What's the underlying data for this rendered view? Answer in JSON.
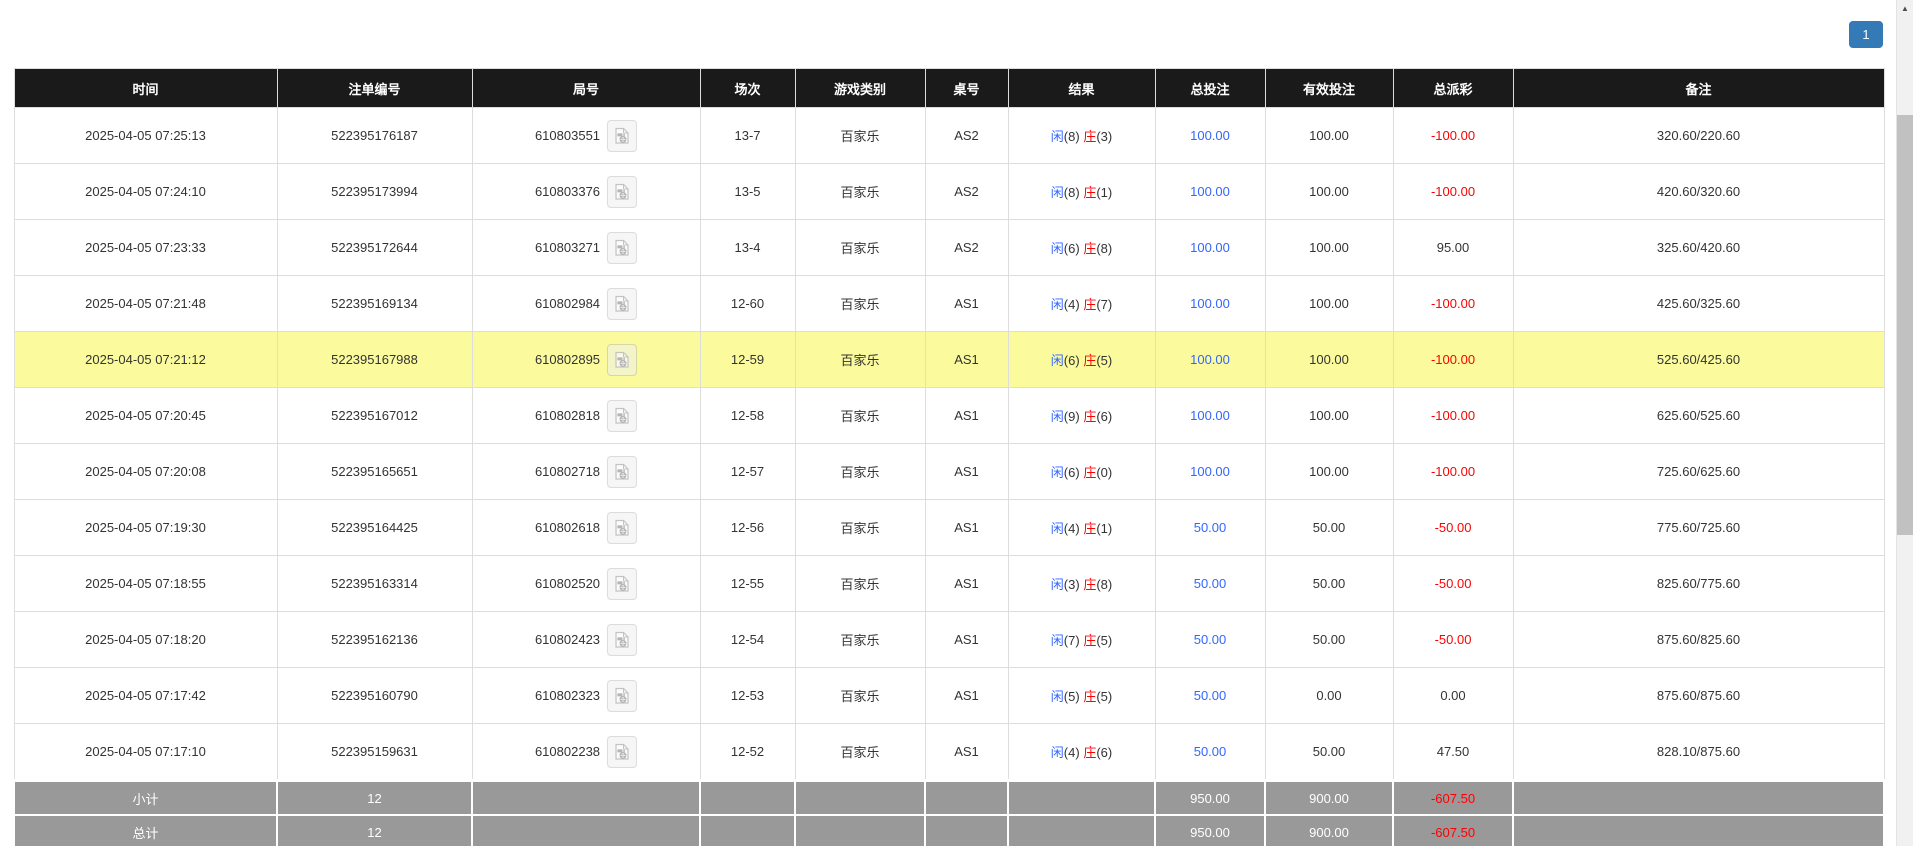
{
  "pagination": {
    "current_page": "1"
  },
  "icons": {
    "video_replay": "video-replay-icon",
    "scrollbar_up_arrow": "▲"
  },
  "colors": {
    "header_bg": "#1a1a1a",
    "link_blue": "#3366ff",
    "loss_red": "#ff0000",
    "highlight_yellow": "#fbfb9e",
    "summary_gray": "#999999",
    "pagination_blue": "#337ab7"
  },
  "table": {
    "columns": [
      "时间",
      "注单编号",
      "局号",
      "场次",
      "游戏类别",
      "桌号",
      "结果",
      "总投注",
      "有效投注",
      "总派彩",
      "备注"
    ],
    "rows": [
      {
        "time": "2025-04-05 07:25:13",
        "bet_id": "522395176187",
        "round": "610803551",
        "session": "13-7",
        "game": "百家乐",
        "table_no": "AS2",
        "result": {
          "player": "闲",
          "player_pts": "(8)",
          "banker": "庄",
          "banker_pts": "(3)"
        },
        "total_bet": "100.00",
        "valid_bet": "100.00",
        "payout": "-100.00",
        "remark": "320.60/220.60",
        "highlighted": false
      },
      {
        "time": "2025-04-05 07:24:10",
        "bet_id": "522395173994",
        "round": "610803376",
        "session": "13-5",
        "game": "百家乐",
        "table_no": "AS2",
        "result": {
          "player": "闲",
          "player_pts": "(8)",
          "banker": "庄",
          "banker_pts": "(1)"
        },
        "total_bet": "100.00",
        "valid_bet": "100.00",
        "payout": "-100.00",
        "remark": "420.60/320.60",
        "highlighted": false
      },
      {
        "time": "2025-04-05 07:23:33",
        "bet_id": "522395172644",
        "round": "610803271",
        "session": "13-4",
        "game": "百家乐",
        "table_no": "AS2",
        "result": {
          "player": "闲",
          "player_pts": "(6)",
          "banker": "庄",
          "banker_pts": "(8)"
        },
        "total_bet": "100.00",
        "valid_bet": "100.00",
        "payout": "95.00",
        "remark": "325.60/420.60",
        "highlighted": false
      },
      {
        "time": "2025-04-05 07:21:48",
        "bet_id": "522395169134",
        "round": "610802984",
        "session": "12-60",
        "game": "百家乐",
        "table_no": "AS1",
        "result": {
          "player": "闲",
          "player_pts": "(4)",
          "banker": "庄",
          "banker_pts": "(7)"
        },
        "total_bet": "100.00",
        "valid_bet": "100.00",
        "payout": "-100.00",
        "remark": "425.60/325.60",
        "highlighted": false
      },
      {
        "time": "2025-04-05 07:21:12",
        "bet_id": "522395167988",
        "round": "610802895",
        "session": "12-59",
        "game": "百家乐",
        "table_no": "AS1",
        "result": {
          "player": "闲",
          "player_pts": "(6)",
          "banker": "庄",
          "banker_pts": "(5)"
        },
        "total_bet": "100.00",
        "valid_bet": "100.00",
        "payout": "-100.00",
        "remark": "525.60/425.60",
        "highlighted": true
      },
      {
        "time": "2025-04-05 07:20:45",
        "bet_id": "522395167012",
        "round": "610802818",
        "session": "12-58",
        "game": "百家乐",
        "table_no": "AS1",
        "result": {
          "player": "闲",
          "player_pts": "(9)",
          "banker": "庄",
          "banker_pts": "(6)"
        },
        "total_bet": "100.00",
        "valid_bet": "100.00",
        "payout": "-100.00",
        "remark": "625.60/525.60",
        "highlighted": false
      },
      {
        "time": "2025-04-05 07:20:08",
        "bet_id": "522395165651",
        "round": "610802718",
        "session": "12-57",
        "game": "百家乐",
        "table_no": "AS1",
        "result": {
          "player": "闲",
          "player_pts": "(6)",
          "banker": "庄",
          "banker_pts": "(0)"
        },
        "total_bet": "100.00",
        "valid_bet": "100.00",
        "payout": "-100.00",
        "remark": "725.60/625.60",
        "highlighted": false
      },
      {
        "time": "2025-04-05 07:19:30",
        "bet_id": "522395164425",
        "round": "610802618",
        "session": "12-56",
        "game": "百家乐",
        "table_no": "AS1",
        "result": {
          "player": "闲",
          "player_pts": "(4)",
          "banker": "庄",
          "banker_pts": "(1)"
        },
        "total_bet": "50.00",
        "valid_bet": "50.00",
        "payout": "-50.00",
        "remark": "775.60/725.60",
        "highlighted": false
      },
      {
        "time": "2025-04-05 07:18:55",
        "bet_id": "522395163314",
        "round": "610802520",
        "session": "12-55",
        "game": "百家乐",
        "table_no": "AS1",
        "result": {
          "player": "闲",
          "player_pts": "(3)",
          "banker": "庄",
          "banker_pts": "(8)"
        },
        "total_bet": "50.00",
        "valid_bet": "50.00",
        "payout": "-50.00",
        "remark": "825.60/775.60",
        "highlighted": false
      },
      {
        "time": "2025-04-05 07:18:20",
        "bet_id": "522395162136",
        "round": "610802423",
        "session": "12-54",
        "game": "百家乐",
        "table_no": "AS1",
        "result": {
          "player": "闲",
          "player_pts": "(7)",
          "banker": "庄",
          "banker_pts": "(5)"
        },
        "total_bet": "50.00",
        "valid_bet": "50.00",
        "payout": "-50.00",
        "remark": "875.60/825.60",
        "highlighted": false
      },
      {
        "time": "2025-04-05 07:17:42",
        "bet_id": "522395160790",
        "round": "610802323",
        "session": "12-53",
        "game": "百家乐",
        "table_no": "AS1",
        "result": {
          "player": "闲",
          "player_pts": "(5)",
          "banker": "庄",
          "banker_pts": "(5)"
        },
        "total_bet": "50.00",
        "valid_bet": "0.00",
        "payout": "0.00",
        "remark": "875.60/875.60",
        "highlighted": false
      },
      {
        "time": "2025-04-05 07:17:10",
        "bet_id": "522395159631",
        "round": "610802238",
        "session": "12-52",
        "game": "百家乐",
        "table_no": "AS1",
        "result": {
          "player": "闲",
          "player_pts": "(4)",
          "banker": "庄",
          "banker_pts": "(6)"
        },
        "total_bet": "50.00",
        "valid_bet": "50.00",
        "payout": "47.50",
        "remark": "828.10/875.60",
        "highlighted": false
      }
    ],
    "footers": [
      {
        "label": "小计",
        "count": "12",
        "total_bet": "950.00",
        "valid_bet": "900.00",
        "payout": "-607.50"
      },
      {
        "label": "总计",
        "count": "12",
        "total_bet": "950.00",
        "valid_bet": "900.00",
        "payout": "-607.50"
      }
    ]
  }
}
